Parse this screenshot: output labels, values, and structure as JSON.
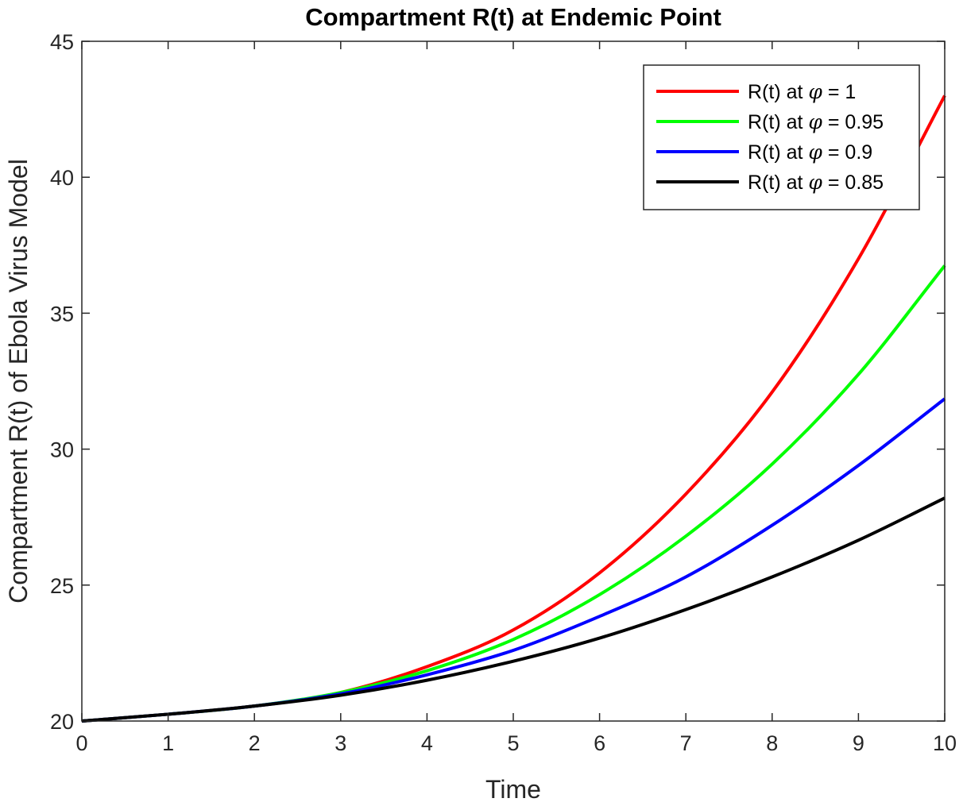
{
  "chart_data": {
    "type": "line",
    "title": "Compartment R(t) at Endemic Point",
    "xlabel": "Time",
    "ylabel": "Compartment R(t) of Ebola Virus Model",
    "xlim": [
      0,
      10
    ],
    "ylim": [
      20,
      45
    ],
    "xticks": [
      "0",
      "1",
      "2",
      "3",
      "4",
      "5",
      "6",
      "7",
      "8",
      "9",
      "10"
    ],
    "yticks": [
      "20",
      "25",
      "30",
      "35",
      "40",
      "45"
    ],
    "grid": false,
    "legend_position": "top-right",
    "x": [
      0,
      1,
      2,
      3,
      4,
      5,
      6,
      7,
      8,
      9,
      10
    ],
    "series": [
      {
        "name_prefix": "R(t) at ",
        "name_symbol": "φ",
        "name_suffix": " = 1",
        "color": "#ff0000",
        "values": [
          20.0,
          20.25,
          20.55,
          21.05,
          22.0,
          23.35,
          25.45,
          28.35,
          32.1,
          37.0,
          43.0
        ]
      },
      {
        "name_prefix": "R(t) at ",
        "name_symbol": "φ",
        "name_suffix": " = 0.95",
        "color": "#00ff00",
        "values": [
          20.0,
          20.25,
          20.55,
          21.05,
          21.85,
          23.0,
          24.65,
          26.8,
          29.45,
          32.75,
          36.75
        ]
      },
      {
        "name_prefix": "R(t) at ",
        "name_symbol": "φ",
        "name_suffix": " = 0.9",
        "color": "#0000ff",
        "values": [
          20.0,
          20.25,
          20.55,
          21.0,
          21.7,
          22.6,
          23.85,
          25.3,
          27.2,
          29.4,
          31.85
        ]
      },
      {
        "name_prefix": "R(t) at ",
        "name_symbol": "φ",
        "name_suffix": " = 0.85",
        "color": "#000000",
        "values": [
          20.0,
          20.25,
          20.55,
          20.95,
          21.5,
          22.2,
          23.05,
          24.1,
          25.3,
          26.65,
          28.2
        ]
      }
    ]
  }
}
